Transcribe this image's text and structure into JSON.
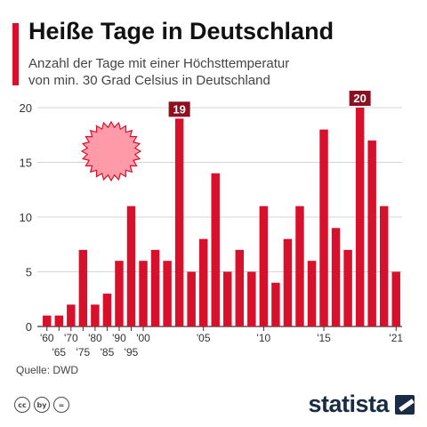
{
  "header": {
    "title": "Heiße Tage in Deutschland",
    "subtitle_line1": "Anzahl der Tage mit einer Höchsttemperatur",
    "subtitle_line2": "von min. 30 Grad Celsius in Deutschland"
  },
  "footer": {
    "source": "Quelle: DWD",
    "brand": "statista",
    "license_icons": [
      "cc",
      "by",
      "="
    ]
  },
  "colors": {
    "accent": "#d7112b",
    "bar": "#d7112b",
    "highlight_label": "#8b1020",
    "sun": "#ff9aa8"
  },
  "chart_data": {
    "type": "bar",
    "title": "Heiße Tage in Deutschland",
    "ylim": [
      0,
      20
    ],
    "yticks": [
      0,
      5,
      10,
      15,
      20
    ],
    "grid": true,
    "categories": [
      "1960",
      "1965",
      "1970",
      "1975",
      "1980",
      "1985",
      "1990",
      "1995",
      "2000",
      "2001",
      "2002",
      "2003",
      "2004",
      "2005",
      "2006",
      "2007",
      "2008",
      "2009",
      "2010",
      "2011",
      "2012",
      "2013",
      "2014",
      "2015",
      "2016",
      "2017",
      "2018",
      "2019",
      "2020",
      "2021"
    ],
    "values": [
      1,
      1,
      2,
      7,
      2,
      3,
      6,
      11,
      6,
      7,
      6,
      19,
      5,
      8,
      14,
      5,
      7,
      5,
      11,
      4,
      8,
      11,
      6,
      18,
      9,
      7,
      20,
      17,
      11,
      5
    ],
    "xtick_labels": [
      {
        "index": 0,
        "label": "'60",
        "row": 1
      },
      {
        "index": 1,
        "label": "'65",
        "row": 2
      },
      {
        "index": 2,
        "label": "'70",
        "row": 1
      },
      {
        "index": 3,
        "label": "'75",
        "row": 2
      },
      {
        "index": 4,
        "label": "'80",
        "row": 1
      },
      {
        "index": 5,
        "label": "'85",
        "row": 2
      },
      {
        "index": 6,
        "label": "'90",
        "row": 1
      },
      {
        "index": 7,
        "label": "'95",
        "row": 2
      },
      {
        "index": 8,
        "label": "'00",
        "row": 1
      },
      {
        "index": 13,
        "label": "'05",
        "row": 1
      },
      {
        "index": 18,
        "label": "'10",
        "row": 1
      },
      {
        "index": 23,
        "label": "'15",
        "row": 1
      },
      {
        "index": 29,
        "label": "'21",
        "row": 1
      }
    ],
    "highlights": [
      {
        "index": 11,
        "label": "19"
      },
      {
        "index": 26,
        "label": "20"
      }
    ]
  }
}
